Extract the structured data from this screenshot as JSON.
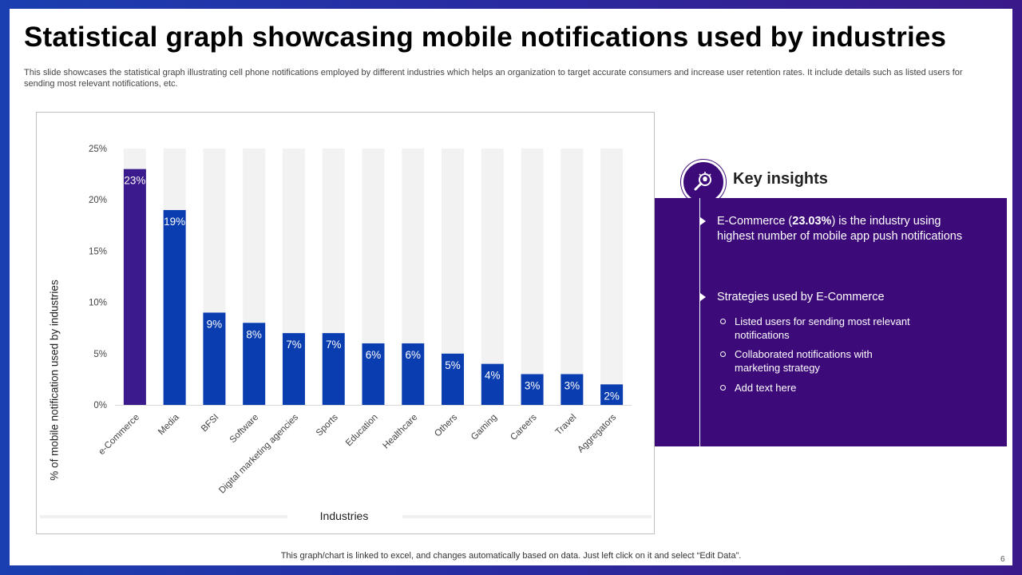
{
  "title": "Statistical graph showcasing mobile notifications used by industries",
  "subtitle": "This slide showcases the statistical graph illustrating cell phone notifications employed by different industries which helps an organization to target accurate consumers and increase user retention rates. It include details such as listed users for sending most relevant notifications, etc.",
  "chart_data": {
    "type": "bar",
    "categories": [
      "e-Commerce",
      "Media",
      "BFSI",
      "Software",
      "Digital marketing agencies",
      "Sports",
      "Education",
      "Healthcare",
      "Others",
      "Gaming",
      "Careers",
      "Travel",
      "Aggregators"
    ],
    "values": [
      23,
      19,
      9,
      8,
      7,
      7,
      6,
      6,
      5,
      4,
      3,
      3,
      2
    ],
    "data_labels": [
      "23%",
      "19%",
      "9%",
      "8%",
      "7%",
      "7%",
      "6%",
      "6%",
      "5%",
      "4%",
      "3%",
      "3%",
      "2%"
    ],
    "xlabel": "Industries",
    "ylabel": "% of mobile notification used by industries",
    "ylim": [
      0,
      25
    ],
    "yticks": [
      "0%",
      "5%",
      "10%",
      "15%",
      "20%",
      "25%"
    ],
    "grid": false,
    "colors": {
      "highlight": "#3a1a8c",
      "bar": "#0a3db0",
      "background_bar": "#f2f2f2",
      "label": "#ffffff"
    }
  },
  "insights": {
    "title": "Key insights",
    "icon": "lightbulb-magnifier-icon",
    "bullet1_pre": "E-Commerce (",
    "bullet1_bold": "23.03%",
    "bullet1_post": ") is the industry  using highest number  of mobile app push notifications",
    "bullet2": "Strategies used by E-Commerce",
    "sub_items": [
      "Listed users for sending most relevant notifications",
      "Collaborated notifications with marketing strategy",
      "Add text here"
    ]
  },
  "footer": "This graph/chart is linked to excel,  and changes automatically based on data. Just left click on it and select “Edit Data”.",
  "page_number": "6",
  "colors": {
    "panel": "#3d0a7a",
    "frame": "#2a2aa0"
  }
}
